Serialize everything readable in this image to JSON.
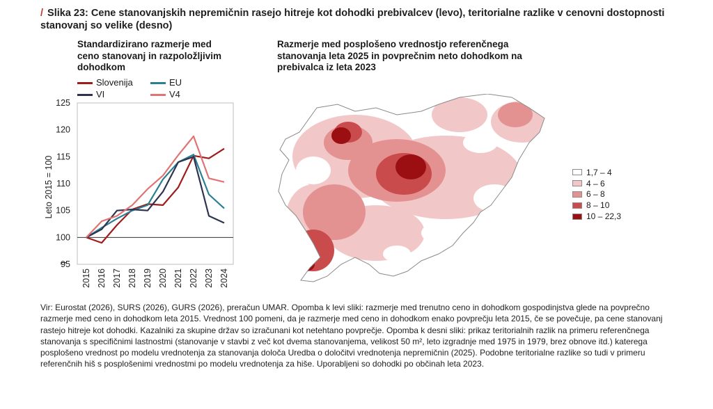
{
  "figure_title": {
    "marker": "/",
    "text": "Slika 23: Cene stanovanjskih nepremičnin rasejo hitreje kot dohodki prebivalcev (levo), teritorialne razlike v cenovni dostopnosti stanovanj so velike (desno)"
  },
  "chart_data": [
    {
      "type": "line",
      "title": "Standardizirano razmerje med ceno stanovanj in razpoložljivim dohodkom",
      "xlabel": "",
      "ylabel": "Leto 2015 = 100",
      "ylim": [
        95,
        125
      ],
      "y_ticks": [
        "100",
        "105",
        "110",
        "115",
        "120",
        "125"
      ],
      "y_ticks_below_break": [
        "95"
      ],
      "axis_break_symbol": "⌐",
      "reference_line": 100,
      "x": [
        "2015",
        "2016",
        "2017",
        "2018",
        "2019",
        "2020",
        "2021",
        "2022",
        "2023",
        "2024"
      ],
      "series": [
        {
          "name": "Slovenija",
          "color": "#9e1c1c",
          "values": [
            100,
            99.0,
            102.3,
            105.2,
            106.2,
            106.0,
            109.3,
            115.2,
            114.7,
            116.5
          ]
        },
        {
          "name": "EU",
          "color": "#2a7f93",
          "values": [
            100,
            101.8,
            103.5,
            105.0,
            106.0,
            110.8,
            114.0,
            115.4,
            108.0,
            105.4
          ]
        },
        {
          "name": "VI",
          "color": "#2d3350",
          "values": [
            100,
            101.5,
            105.0,
            105.2,
            105.0,
            108.5,
            114.0,
            115.0,
            104.0,
            102.7
          ]
        },
        {
          "name": "V4",
          "color": "#e07373",
          "values": [
            100,
            103.0,
            104.0,
            106.0,
            109.0,
            111.5,
            115.3,
            118.8,
            111.0,
            110.3
          ]
        }
      ],
      "grid": false,
      "legend": "top"
    },
    {
      "type": "heatmap",
      "title": "Razmerje med posplošeno vrednostjo referenčnega stanovanja leta 2025 in povprečnim neto dohodkom na prebivalca iz leta 2023",
      "legend_entries": [
        {
          "label": "1,7 – 4",
          "color": "#ffffff"
        },
        {
          "label": "4 – 6",
          "color": "#f2c7c7"
        },
        {
          "label": "6 – 8",
          "color": "#e39191"
        },
        {
          "label": "8 – 10",
          "color": "#c94b4b"
        },
        {
          "label": "10 – 22,3",
          "color": "#9b0f12"
        }
      ],
      "legend": "right"
    }
  ],
  "footnote": "Vir: Eurostat (2026), SURS (2026), GURS (2026), preračun UMAR. Opomba k levi sliki: razmerje med trenutno ceno in dohodkom gospodinjstva glede na povprečno razmerje med ceno in dohodkom leta 2015. Vrednost 100 pomeni, da je razmerje med ceno in dohodkom enako povprečju leta 2015, če se povečuje, pa cene stanovanj rastejo hitreje kot dohodki. Kazalniki za skupine držav so izračunani kot netehtano povprečje. Opomba k desni sliki: prikaz teritorialnih razlik na primeru referenčnega stanovanja s specifičnimi lastnostmi (stanovanje v stavbi z več kot dvema stanovanjema, velikost 50 m², leto izgradnje med 1975 in 1979, brez obnove itd.) katerega posplošeno vrednost po modelu vrednotenja za stanovanja določa Uredba o določitvi vrednotenja nepremičnin (2025). Podobne teritorialne razlike so tudi v primeru referenčnih hiš s posplošenimi vrednostmi po modelu vrednotenja za hiše. Uporabljeni so dohodki po občinah leta 2023."
}
